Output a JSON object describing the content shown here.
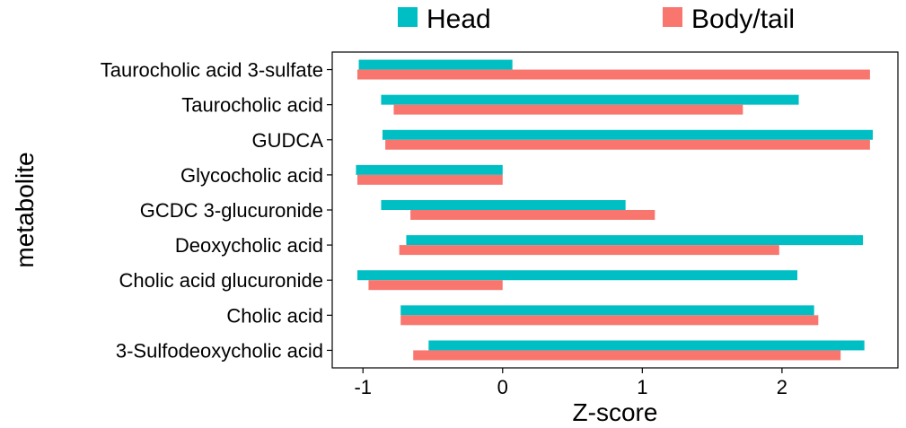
{
  "chart_data": {
    "type": "bar",
    "orientation": "horizontal",
    "categories": [
      "Taurocholic acid 3-sulfate",
      "Taurocholic acid",
      "GUDCA",
      "Glycocholic acid",
      "GCDC 3-glucuronide",
      "Deoxycholic acid",
      "Cholic acid glucuronide",
      "Cholic acid",
      "3-Sulfodeoxycholic acid"
    ],
    "series": [
      {
        "name": "Head",
        "color": "#00BFC4",
        "ranges": [
          [
            -1.03,
            0.07
          ],
          [
            -0.87,
            2.12
          ],
          [
            -0.86,
            2.65
          ],
          [
            -1.05,
            0.0
          ],
          [
            -0.87,
            0.88
          ],
          [
            -0.69,
            2.58
          ],
          [
            -1.04,
            2.11
          ],
          [
            -0.73,
            2.23
          ],
          [
            -0.53,
            2.59
          ]
        ]
      },
      {
        "name": "Body/tail",
        "color": "#F8766D",
        "ranges": [
          [
            -1.04,
            2.63
          ],
          [
            -0.78,
            1.72
          ],
          [
            -0.84,
            2.63
          ],
          [
            -1.04,
            0.0
          ],
          [
            -0.66,
            1.09
          ],
          [
            -0.74,
            1.98
          ],
          [
            -0.96,
            0.0
          ],
          [
            -0.73,
            2.26
          ],
          [
            -0.64,
            2.42
          ]
        ]
      }
    ],
    "xlabel": "Z-score",
    "ylabel": "metabolite",
    "xlim": [
      -1.22,
      2.83
    ],
    "xticks": [
      -1,
      0,
      1,
      2
    ],
    "grid": false,
    "legend": {
      "position": "top",
      "entries": [
        "Head",
        "Body/tail"
      ]
    }
  }
}
